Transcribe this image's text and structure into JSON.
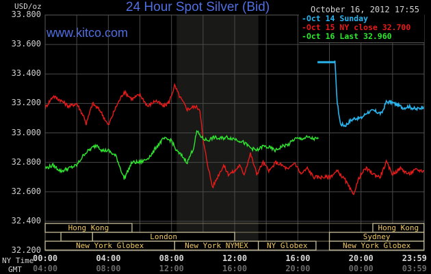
{
  "header": {
    "title": "24 Hour Spot Silver (Bid)",
    "watermark": "www.kitco.com",
    "datetime": "October 16, 2012 17:55",
    "unit": "USD/oz"
  },
  "legend": [
    {
      "label": "Oct 14 Sunday",
      "color": "#29b6f0"
    },
    {
      "label": "Oct 15 NY close 32.700",
      "color": "#e81a1a"
    },
    {
      "label": "Oct 16 Last 32.960",
      "color": "#2ee82e"
    }
  ],
  "axis": {
    "y_ticks": [
      "33.800",
      "33.600",
      "33.400",
      "33.200",
      "33.000",
      "32.800",
      "32.600",
      "32.400",
      "32.200"
    ],
    "ny_time_label": "NY Time",
    "gmt_label": "GMT",
    "x_ticks_ny": [
      "00:00",
      "04:00",
      "08:00",
      "12:00",
      "16:00",
      "20:00",
      "23:59"
    ],
    "x_ticks_gmt": [
      "04:00",
      "08:00",
      "12:00",
      "16:00",
      "20:00",
      "00:00",
      "03:59"
    ]
  },
  "sessions": {
    "row1": [
      {
        "label": "Hong Kong",
        "start": 0,
        "end": 5.5
      },
      {
        "label": "Hong Kong",
        "start": 20.75,
        "end": 23.99
      }
    ],
    "row2": [
      {
        "label": "London",
        "start": 1.0,
        "end": 3.0
      },
      {
        "label": "London",
        "start": 3.0,
        "end": 12.0
      },
      {
        "label": "Sydney",
        "start": 18.0,
        "end": 23.99
      }
    ],
    "row3": [
      {
        "label": "New York Globex",
        "start": 0,
        "end": 8.2
      },
      {
        "label": "New York NYMEX",
        "start": 8.2,
        "end": 13.5
      },
      {
        "label": "NY Globex",
        "start": 13.5,
        "end": 17.15
      },
      {
        "label": "New York Globex",
        "start": 18.0,
        "end": 23.99
      }
    ]
  },
  "chart_data": {
    "type": "line",
    "title": "24 Hour Spot Silver (Bid)",
    "xlabel": "NY Time / GMT",
    "ylabel": "USD/oz",
    "ylim": [
      32.2,
      33.8
    ],
    "xlim_hours": [
      0,
      24
    ],
    "grid": true,
    "shaded_region_hours": [
      8.33,
      13.5
    ],
    "legend_position": "top-right",
    "series": [
      {
        "name": "Oct 14 Sunday",
        "color": "#29b6f0",
        "x_hours": [
          17.25,
          18.35,
          18.5,
          18.7,
          19.0,
          19.3,
          19.6,
          20.0,
          20.4,
          20.8,
          21.3,
          21.6,
          21.9,
          22.3,
          22.7,
          23.0,
          23.5,
          23.99
        ],
        "values": [
          33.48,
          33.48,
          33.2,
          33.06,
          33.05,
          33.08,
          33.1,
          33.1,
          33.14,
          33.15,
          33.13,
          33.21,
          33.21,
          33.19,
          33.17,
          33.18,
          33.16,
          33.18
        ]
      },
      {
        "name": "Oct 15 NY close 32.700",
        "color": "#e81a1a",
        "x_hours": [
          0,
          0.5,
          1.0,
          1.5,
          2.0,
          2.5,
          2.6,
          3.0,
          3.5,
          4.0,
          4.5,
          5.0,
          5.5,
          6.0,
          6.5,
          7.0,
          7.5,
          7.85,
          8.2,
          8.5,
          9.0,
          9.5,
          9.8,
          10.0,
          10.3,
          10.6,
          11.0,
          11.3,
          11.6,
          12.0,
          12.3,
          12.6,
          13.0,
          13.4,
          13.8,
          14.2,
          14.6,
          15.0,
          15.4,
          15.8,
          16.2,
          16.6,
          17.0,
          17.5,
          18.0,
          18.5,
          19.0,
          19.5,
          19.9,
          20.3,
          20.8,
          21.2,
          21.6,
          22.0,
          22.5,
          23.0,
          23.5,
          23.99
        ],
        "values": [
          33.17,
          33.25,
          33.22,
          33.18,
          33.2,
          33.1,
          33.06,
          33.2,
          33.15,
          33.05,
          33.18,
          33.28,
          33.23,
          33.26,
          33.18,
          33.22,
          33.18,
          33.21,
          33.32,
          33.25,
          33.16,
          33.18,
          33.16,
          32.95,
          32.78,
          32.63,
          32.72,
          32.78,
          32.72,
          32.74,
          32.78,
          32.72,
          32.86,
          32.72,
          32.8,
          32.74,
          32.8,
          32.78,
          32.75,
          32.8,
          32.72,
          32.76,
          32.7,
          32.7,
          32.7,
          32.74,
          32.68,
          32.58,
          32.7,
          32.76,
          32.72,
          32.7,
          32.8,
          32.72,
          32.76,
          32.72,
          32.75,
          32.74
        ]
      },
      {
        "name": "Oct 16 Last 32.960",
        "color": "#2ee82e",
        "x_hours": [
          0,
          0.5,
          1.0,
          1.5,
          2.0,
          2.5,
          3.0,
          3.3,
          3.6,
          4.0,
          4.5,
          5.0,
          5.5,
          6.0,
          6.4,
          6.8,
          7.0,
          7.5,
          8.0,
          8.3,
          8.7,
          9.0,
          9.4,
          9.6,
          10.0,
          10.3,
          10.7,
          11.0,
          11.5,
          12.0,
          12.5,
          13.0,
          13.4,
          13.8,
          14.2,
          14.6,
          15.0,
          15.4,
          15.8,
          16.2,
          16.6,
          17.0,
          17.3
        ],
        "values": [
          32.76,
          32.78,
          32.74,
          32.76,
          32.78,
          32.86,
          32.9,
          32.92,
          32.88,
          32.88,
          32.84,
          32.69,
          32.8,
          32.8,
          32.82,
          32.86,
          32.9,
          32.96,
          32.95,
          32.88,
          32.84,
          32.8,
          32.9,
          33.01,
          32.96,
          32.95,
          32.97,
          32.96,
          32.97,
          32.96,
          32.94,
          32.9,
          32.88,
          32.91,
          32.9,
          32.88,
          32.91,
          32.92,
          32.96,
          32.96,
          32.97,
          32.96,
          32.96
        ]
      }
    ]
  }
}
